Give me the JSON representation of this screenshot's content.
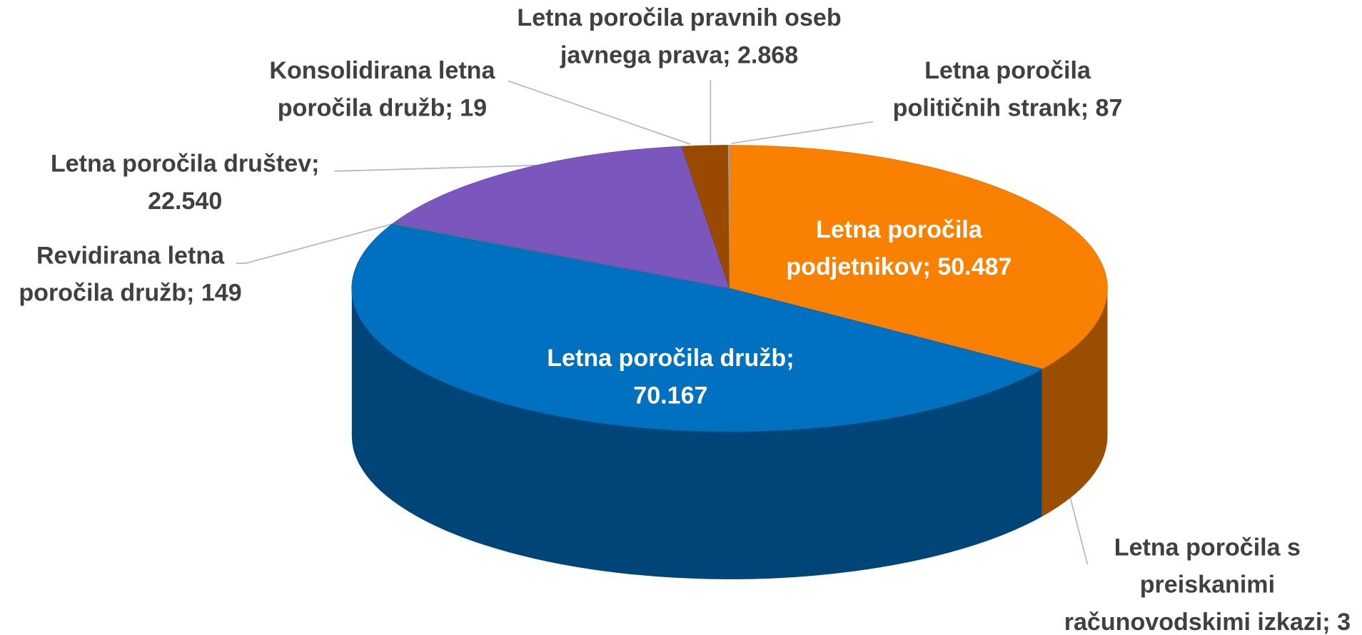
{
  "chart_data": {
    "type": "pie",
    "values": [
      50487,
      3,
      70167,
      149,
      22540,
      19,
      2868,
      87
    ],
    "value_labels": [
      "Letna poročila\npodjetnikov; 50.487",
      "Letna poročila s\npreiskanimi\nračunovodskimi izkazi; 3",
      "Letna poročila družb;\n70.167",
      "Revidirana letna\nporočila družb; 149",
      "Letna poročila društev;\n22.540",
      "Konsolidirana letna\nporočila družb; 19",
      "Letna poročila pravnih oseb\njavnega prava; 2.868",
      "Letna poročila\npolitičnih strank; 87"
    ],
    "colors": [
      "#f98000",
      "#5a9bd5",
      "#0070c0",
      "#7f7f7f",
      "#7b56bc",
      "#4a6f8f",
      "#9a4a00",
      "#a5a5a5"
    ]
  }
}
